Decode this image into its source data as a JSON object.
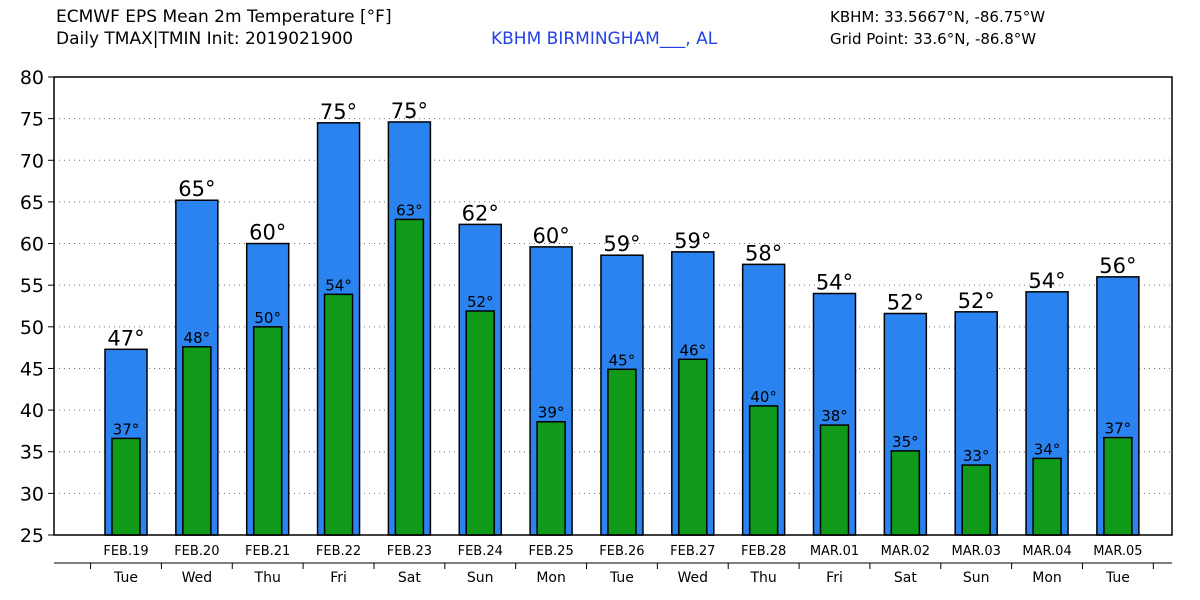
{
  "header": {
    "title_line1": "ECMWF EPS Mean 2m Temperature [°F]",
    "title_line2": "Daily TMAX|TMIN Init: 2019021900",
    "station": "KBHM BIRMINGHAM___, AL",
    "coords": "KBHM: 33.5667°N, -86.75°W",
    "grid_point": "Grid Point: 33.6°N, -86.8°W"
  },
  "colors": {
    "tmax_bar": "#2b83f0",
    "tmin_bar": "#109a1a",
    "station_text": "#2342e6"
  },
  "chart_data": {
    "type": "bar",
    "title": "ECMWF EPS Mean 2m Temperature [°F]",
    "ylim": [
      25,
      80
    ],
    "yticks": [
      25,
      30,
      35,
      40,
      45,
      50,
      55,
      60,
      65,
      70,
      75,
      80
    ],
    "grid": true,
    "categories": [
      "FEB.19",
      "FEB.20",
      "FEB.21",
      "FEB.22",
      "FEB.23",
      "FEB.24",
      "FEB.25",
      "FEB.26",
      "FEB.27",
      "FEB.28",
      "MAR.01",
      "MAR.02",
      "MAR.03",
      "MAR.04",
      "MAR.05"
    ],
    "weekdays": [
      "Tue",
      "Wed",
      "Thu",
      "Fri",
      "Sat",
      "Sun",
      "Mon",
      "Tue",
      "Wed",
      "Thu",
      "Fri",
      "Sat",
      "Sun",
      "Mon",
      "Tue"
    ],
    "series": [
      {
        "name": "TMAX",
        "values": [
          47.3,
          65.2,
          60.0,
          74.5,
          74.6,
          62.3,
          59.6,
          58.6,
          59.0,
          57.5,
          54.0,
          51.6,
          51.8,
          54.2,
          56.0
        ],
        "labels": [
          "47°",
          "65°",
          "60°",
          "75°",
          "75°",
          "62°",
          "60°",
          "59°",
          "59°",
          "58°",
          "54°",
          "52°",
          "52°",
          "54°",
          "56°"
        ]
      },
      {
        "name": "TMIN",
        "values": [
          36.6,
          47.6,
          50.0,
          53.9,
          62.9,
          51.9,
          38.6,
          44.9,
          46.1,
          40.5,
          38.2,
          35.1,
          33.4,
          34.2,
          36.7
        ],
        "labels": [
          "37°",
          "48°",
          "50°",
          "54°",
          "63°",
          "52°",
          "39°",
          "45°",
          "46°",
          "40°",
          "38°",
          "35°",
          "33°",
          "34°",
          "37°"
        ]
      }
    ]
  }
}
